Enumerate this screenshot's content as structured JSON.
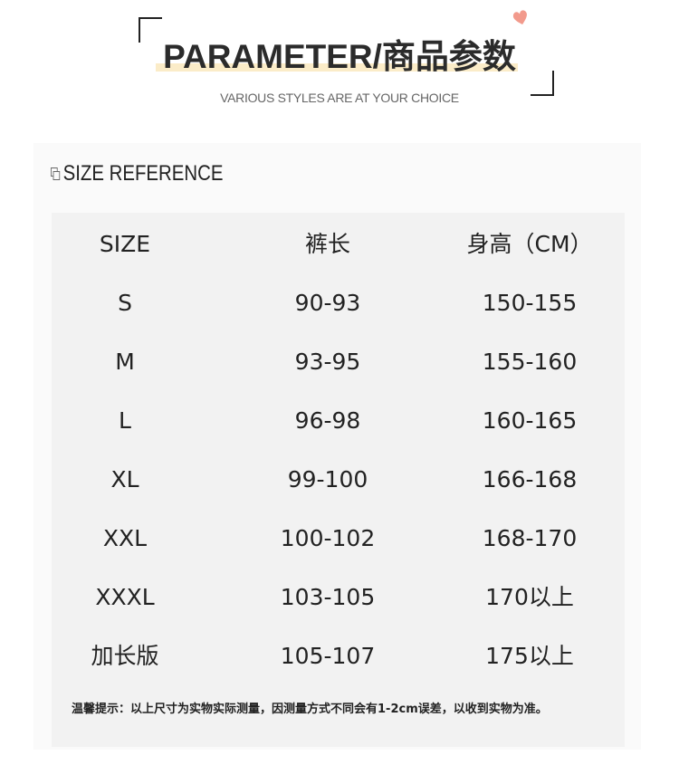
{
  "header": {
    "title": "PARAMETER/商品参数",
    "subtitle": "VARIOUS STYLES ARE AT YOUR CHOICE",
    "accent_color": "#fbecc8",
    "heart_color": "#f29a8c"
  },
  "section": {
    "title": "SIZE REFERENCE",
    "icon": "copy-icon"
  },
  "table": {
    "headers": [
      "SIZE",
      "裤长",
      "身高（CM）"
    ],
    "rows": [
      [
        "S",
        "90-93",
        "150-155"
      ],
      [
        "M",
        "93-95",
        "155-160"
      ],
      [
        "L",
        "96-98",
        "160-165"
      ],
      [
        "XL",
        "99-100",
        "166-168"
      ],
      [
        "XXL",
        "100-102",
        "168-170"
      ],
      [
        "XXXL",
        "103-105",
        "170以上"
      ],
      [
        "加长版",
        "105-107",
        "175以上"
      ]
    ]
  },
  "note": "温馨提示：以上尺寸为实物实际测量，因测量方式不同会有1-2cm误差，以收到实物为准。"
}
